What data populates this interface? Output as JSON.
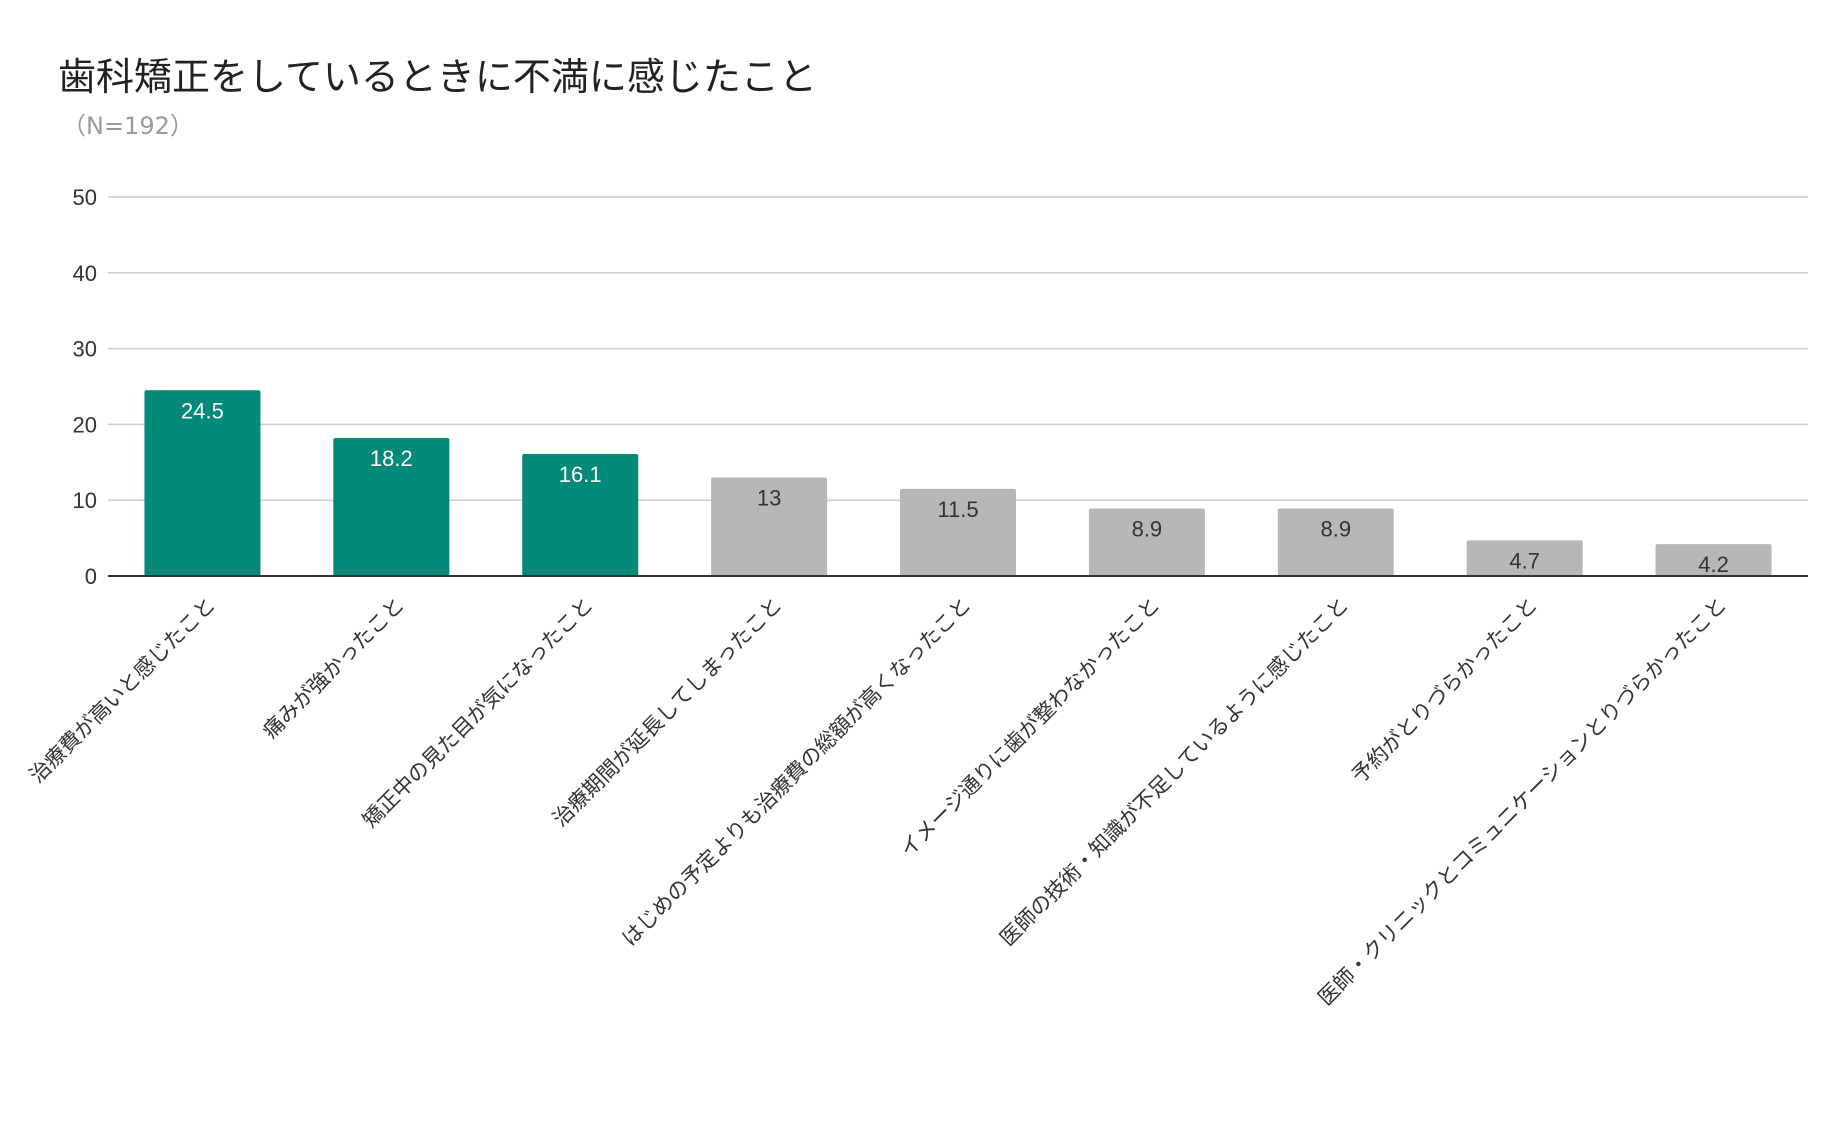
{
  "chart_data": {
    "type": "bar",
    "title": "歯科矯正をしているときに不満に感じたこと",
    "subtitle": "（N=192）",
    "xlabel": "",
    "ylabel": "",
    "ylim": [
      0,
      50
    ],
    "yticks": [
      0,
      10,
      20,
      30,
      40,
      50
    ],
    "grid": true,
    "categories": [
      "治療費が高いと感じたこと",
      "痛みが強かったこと",
      "矯正中の見た目が気になったこと",
      "治療期間が延長してしまったこと",
      "はじめの予定よりも治療費の総額が高くなったこと",
      "イメージ通りに歯が整わなかったこと",
      "医師の技術・知識が不足しているように感じたこと",
      "予約がとりづらかったこと",
      "医師・クリニックとコミュニケーションとりづらかったこと"
    ],
    "values": [
      24.5,
      18.2,
      16.1,
      13,
      11.5,
      8.9,
      8.9,
      4.7,
      4.2
    ],
    "value_labels": [
      "24.5",
      "18.2",
      "16.1",
      "13",
      "11.5",
      "8.9",
      "8.9",
      "4.7",
      "4.2"
    ],
    "highlight_count": 3,
    "colors": {
      "highlight": "#008a77",
      "normal": "#b7b7b7",
      "highlight_label": "#ffffff",
      "normal_label": "#333333",
      "grid": "#cccccc",
      "axis": "#333333"
    }
  }
}
